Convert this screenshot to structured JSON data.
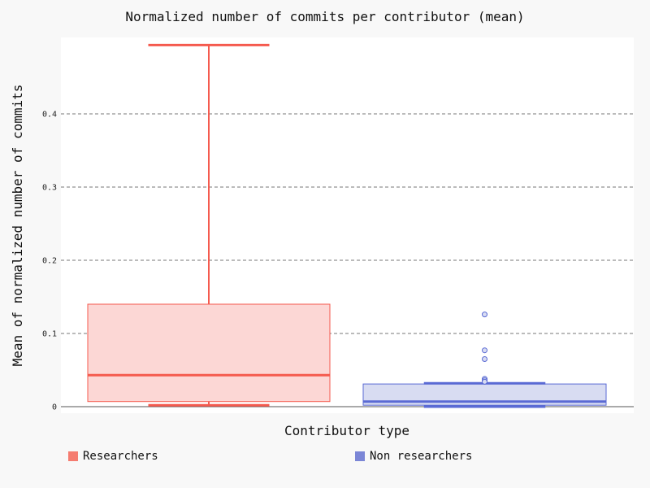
{
  "chart_data": {
    "type": "box",
    "title": "Normalized number of commits per contributor (mean)",
    "xlabel": "Contributor type",
    "ylabel": "Mean of normalized number of commits",
    "ylim": [
      0,
      0.5
    ],
    "yticks": [
      0,
      0.1,
      0.2,
      0.3,
      0.4
    ],
    "ytick_labels": [
      "0",
      "0.1",
      "0.2",
      "0.3",
      "0.4"
    ],
    "grid": "horizontal-dashed",
    "legend_position": "bottom",
    "series": [
      {
        "name": "Researchers",
        "color": "#f55a4e",
        "fill": "#fcd7d5",
        "whisker_low": 0.002,
        "q1": 0.007,
        "median": 0.043,
        "q3": 0.14,
        "whisker_high": 0.494,
        "outliers": []
      },
      {
        "name": "Non researchers",
        "color": "#5a6ad4",
        "fill": "#d8dcf2",
        "whisker_low": 0.0,
        "q1": 0.002,
        "median": 0.007,
        "q3": 0.031,
        "whisker_high": 0.032,
        "outliers": [
          0.126,
          0.077,
          0.065,
          0.038,
          0.036,
          0.034
        ]
      }
    ]
  },
  "legend": {
    "items": [
      {
        "label": "Researchers",
        "color": "#f57c70"
      },
      {
        "label": "Non researchers",
        "color": "#7b86d6"
      }
    ]
  }
}
